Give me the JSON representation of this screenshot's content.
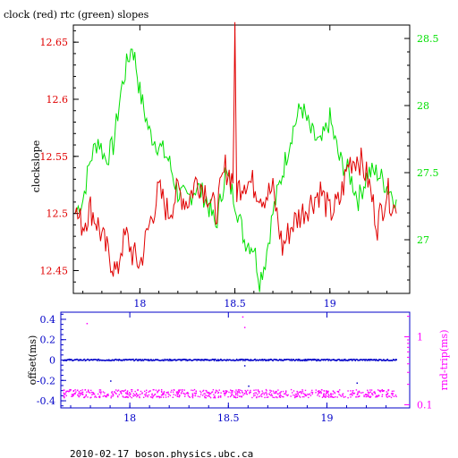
{
  "colors": {
    "clock": "#e00000",
    "rtc": "#00e000",
    "offset": "#0000c8",
    "rndtrip": "#ff00ff",
    "axis": "#000000",
    "offset_axis": "#0000c8"
  },
  "chart_data": [
    {
      "type": "line",
      "title": "clock (red) rtc (green) slopes",
      "ylabel": "clockslope",
      "xlim": [
        17.65,
        19.42
      ],
      "ylim": [
        12.43,
        12.665
      ],
      "y2lim": [
        26.6,
        28.6
      ],
      "xticks": [
        "18",
        "18.5",
        "19"
      ],
      "xtick_values": [
        18,
        18.5,
        19
      ],
      "yticks": [
        "12.45",
        "12.5",
        "12.55",
        "12.6",
        "12.65"
      ],
      "ytick_values": [
        12.45,
        12.5,
        12.55,
        12.6,
        12.65
      ],
      "y2ticks": [
        "27",
        "27.5",
        "28",
        "28.5"
      ],
      "y2tick_values": [
        27,
        27.5,
        28,
        28.5
      ],
      "series": [
        {
          "name": "clock",
          "axis": "left",
          "x": [
            17.66,
            17.7,
            17.74,
            17.78,
            17.82,
            17.86,
            17.88,
            17.9,
            17.93,
            17.96,
            18.0,
            18.05,
            18.1,
            18.15,
            18.2,
            18.25,
            18.3,
            18.35,
            18.4,
            18.45,
            18.49,
            18.5,
            18.51,
            18.55,
            18.6,
            18.65,
            18.7,
            18.75,
            18.8,
            18.85,
            18.9,
            18.95,
            19.0,
            19.05,
            19.1,
            19.15,
            19.2,
            19.25,
            19.3,
            19.35
          ],
          "y": [
            12.5,
            12.49,
            12.505,
            12.49,
            12.47,
            12.455,
            12.445,
            12.47,
            12.48,
            12.465,
            12.455,
            12.49,
            12.52,
            12.5,
            12.52,
            12.51,
            12.53,
            12.52,
            12.5,
            12.54,
            12.53,
            12.655,
            12.52,
            12.53,
            12.525,
            12.515,
            12.52,
            12.47,
            12.49,
            12.5,
            12.51,
            12.52,
            12.5,
            12.51,
            12.545,
            12.55,
            12.53,
            12.49,
            12.52,
            12.5
          ]
        },
        {
          "name": "rtc",
          "axis": "right",
          "x": [
            17.66,
            17.7,
            17.74,
            17.78,
            17.82,
            17.86,
            17.9,
            17.93,
            17.96,
            17.98,
            18.0,
            18.05,
            18.1,
            18.15,
            18.2,
            18.25,
            18.3,
            18.35,
            18.4,
            18.45,
            18.5,
            18.55,
            18.6,
            18.63,
            18.66,
            18.7,
            18.75,
            18.8,
            18.85,
            18.9,
            18.95,
            19.0,
            19.05,
            19.1,
            19.15,
            19.2,
            19.25,
            19.3,
            19.35
          ],
          "y": [
            27.2,
            27.3,
            27.6,
            27.75,
            27.6,
            27.7,
            28.1,
            28.3,
            28.45,
            28.3,
            28.1,
            27.8,
            27.7,
            27.6,
            27.35,
            27.3,
            27.4,
            27.3,
            27.1,
            27.5,
            27.3,
            27.0,
            26.95,
            26.7,
            26.85,
            27.2,
            27.5,
            27.8,
            28.0,
            27.8,
            27.7,
            27.9,
            27.6,
            27.5,
            27.3,
            27.5,
            27.5,
            27.4,
            27.3
          ]
        }
      ]
    },
    {
      "type": "scatter",
      "ylabel": "offset(ms)",
      "y2label": "rnd-trip(ms)",
      "footer": "2010-02-17 boson.physics.ubc.ca",
      "xlim": [
        17.65,
        19.42
      ],
      "ylim": [
        -0.47,
        0.47
      ],
      "y2lim": [
        0.09,
        2.3
      ],
      "y2scale": "log",
      "xticks": [
        "18",
        "18.5",
        "19"
      ],
      "xtick_values": [
        18,
        18.5,
        19
      ],
      "yticks": [
        "0.4",
        "0.2",
        "0",
        "-0.2",
        "-0.4"
      ],
      "ytick_values": [
        0.4,
        0.2,
        0,
        -0.2,
        -0.4
      ],
      "y2ticks": [
        "1",
        "0.1"
      ],
      "y2tick_values": [
        1,
        0.1
      ],
      "series": [
        {
          "name": "offset",
          "axis": "left",
          "x": [
            17.66,
            17.8,
            17.9,
            18.0,
            18.1,
            18.2,
            18.3,
            18.4,
            18.5,
            18.6,
            18.7,
            18.8,
            18.9,
            19.0,
            19.1,
            19.2,
            19.3,
            19.35
          ],
          "y": [
            0.0,
            0.0,
            0.0,
            0.0,
            0.0,
            0.0,
            0.0,
            0.0,
            0.0,
            0.0,
            0.0,
            0.0,
            0.0,
            0.0,
            0.0,
            0.0,
            0.0,
            0.0
          ],
          "outliers_x": [
            17.9,
            18.58,
            18.6,
            19.15
          ],
          "outliers_y": [
            -0.2,
            -0.05,
            -0.25,
            -0.22
          ]
        },
        {
          "name": "rnd-trip",
          "axis": "right",
          "x": [
            17.66,
            17.8,
            17.9,
            18.0,
            18.1,
            18.2,
            18.3,
            18.4,
            18.5,
            18.6,
            18.7,
            18.8,
            18.9,
            19.0,
            19.1,
            19.2,
            19.3,
            19.35
          ],
          "y": [
            0.145,
            0.145,
            0.145,
            0.145,
            0.145,
            0.145,
            0.145,
            0.145,
            0.145,
            0.145,
            0.145,
            0.145,
            0.145,
            0.145,
            0.145,
            0.145,
            0.145,
            0.145
          ],
          "outliers_x": [
            17.78,
            18.57,
            18.58
          ],
          "outliers_y": [
            1.6,
            2.0,
            1.4
          ]
        }
      ]
    }
  ]
}
